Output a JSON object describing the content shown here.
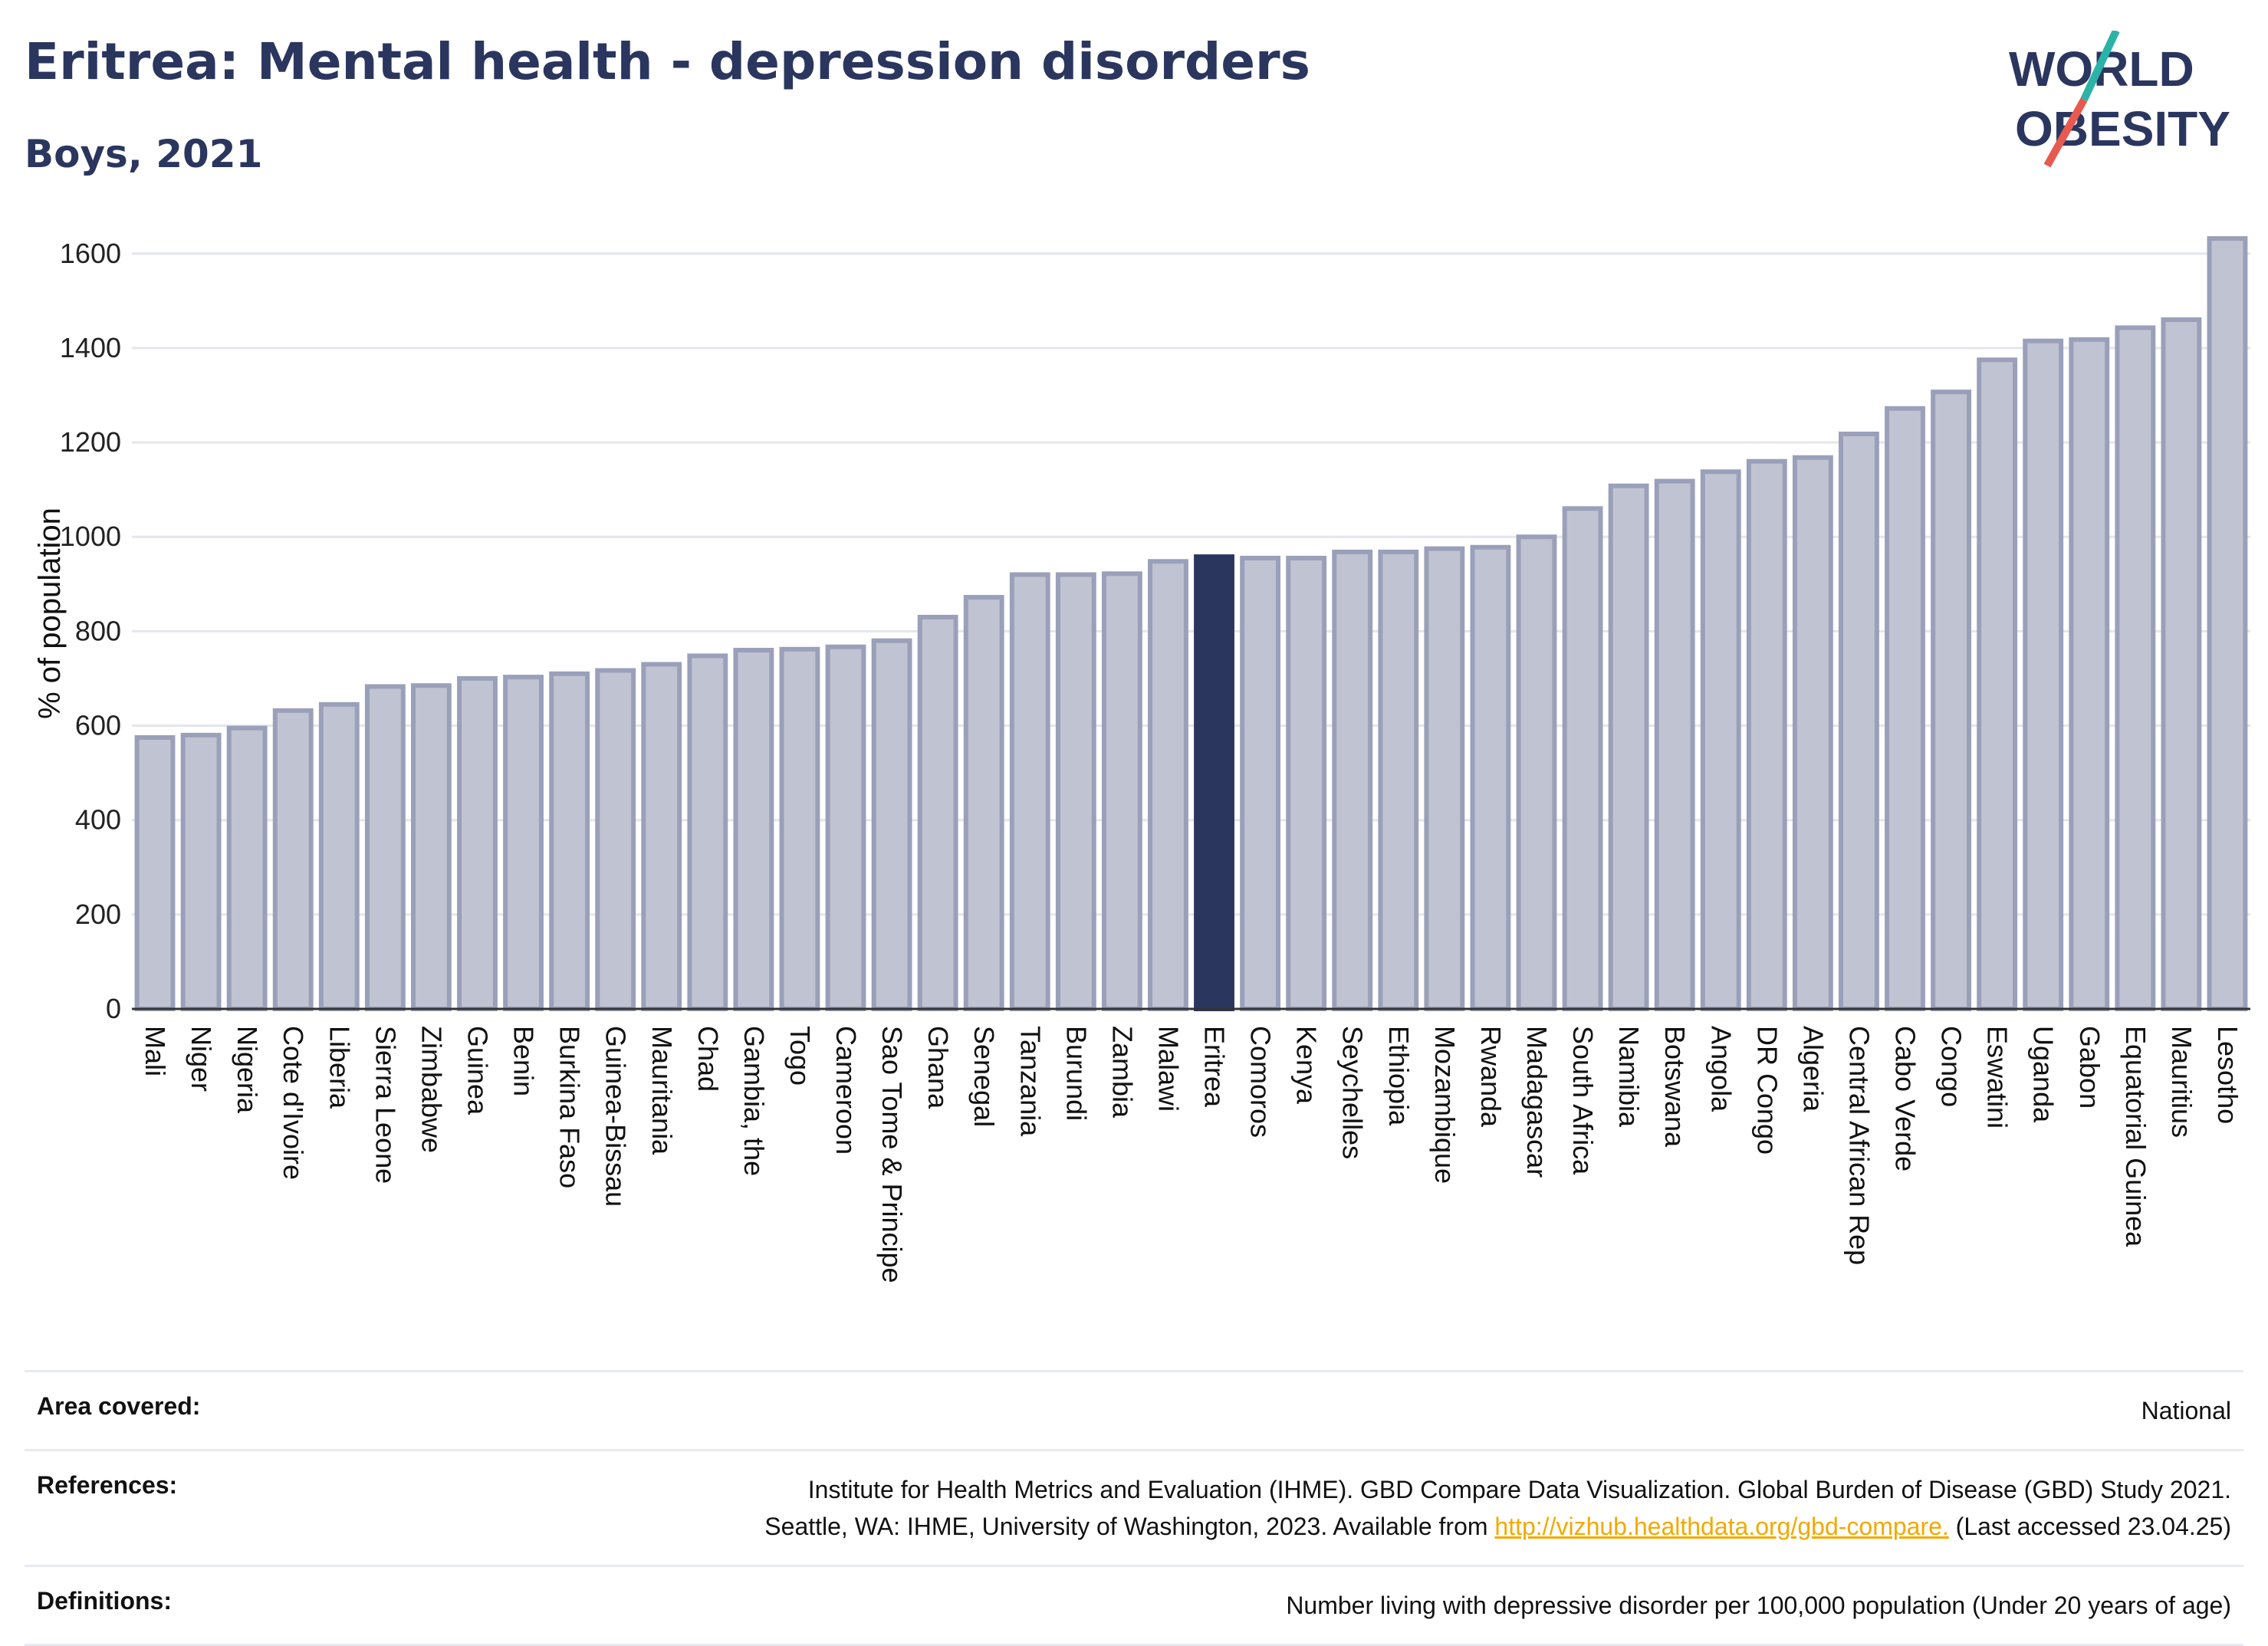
{
  "title": "Eritrea: Mental health - depression disorders",
  "subtitle": "Boys, 2021",
  "logo": {
    "line1": "WORLD",
    "line2": "OBESITY",
    "colors": {
      "text": "#2b365f",
      "slash_top": "#2bb3a8",
      "slash_bottom": "#e85a4f"
    }
  },
  "colors": {
    "bar": "#c0c3d1",
    "bar_stroke": "#9aa0b9",
    "highlight": "#2b365f"
  },
  "chart_data": {
    "type": "bar",
    "ylabel": "% of population",
    "xlabel": "",
    "ylim": [
      0,
      1650
    ],
    "yticks": [
      0,
      200,
      400,
      600,
      800,
      1000,
      1200,
      1400,
      1600
    ],
    "grid": true,
    "highlight": "Eritrea",
    "categories": [
      "Mali",
      "Niger",
      "Nigeria",
      "Cote d'Ivoire",
      "Liberia",
      "Sierra Leone",
      "Zimbabwe",
      "Guinea",
      "Benin",
      "Burkina Faso",
      "Guinea-Bissau",
      "Mauritania",
      "Chad",
      "Gambia, the",
      "Togo",
      "Cameroon",
      "Sao Tome & Principe",
      "Ghana",
      "Senegal",
      "Tanzania",
      "Burundi",
      "Zambia",
      "Malawi",
      "Eritrea",
      "Comoros",
      "Kenya",
      "Seychelles",
      "Ethiopia",
      "Mozambique",
      "Rwanda",
      "Madagascar",
      "South Africa",
      "Namibia",
      "Botswana",
      "Angola",
      "DR Congo",
      "Algeria",
      "Central African Rep",
      "Cabo Verde",
      "Congo",
      "Eswatini",
      "Uganda",
      "Gabon",
      "Equatorial Guinea",
      "Mauritius",
      "Lesotho"
    ],
    "values": [
      575,
      580,
      595,
      632,
      645,
      683,
      685,
      700,
      703,
      710,
      717,
      730,
      748,
      760,
      762,
      767,
      780,
      830,
      872,
      920,
      920,
      922,
      948,
      958,
      955,
      955,
      968,
      968,
      975,
      978,
      1000,
      1060,
      1108,
      1118,
      1138,
      1160,
      1168,
      1218,
      1272,
      1307,
      1375,
      1415,
      1418,
      1443,
      1460,
      1632
    ]
  },
  "footer": {
    "area_label": "Area covered:",
    "area_value": "National",
    "ref_label": "References:",
    "ref_line1": "Institute for Health Metrics and Evaluation (IHME). GBD Compare Data Visualization. Global Burden of Disease (GBD) Study 2021.",
    "ref_line2_pre": "Seattle, WA: IHME, University of Washington, 2023. Available from",
    "ref_link": "http://vizhub.healthdata.org/gbd-compare.",
    "ref_line2_post": "(Last accessed 23.04.25)",
    "def_label": "Definitions:",
    "def_value": "Number living with depressive disorder per 100,000 population (Under 20 years of age)"
  }
}
